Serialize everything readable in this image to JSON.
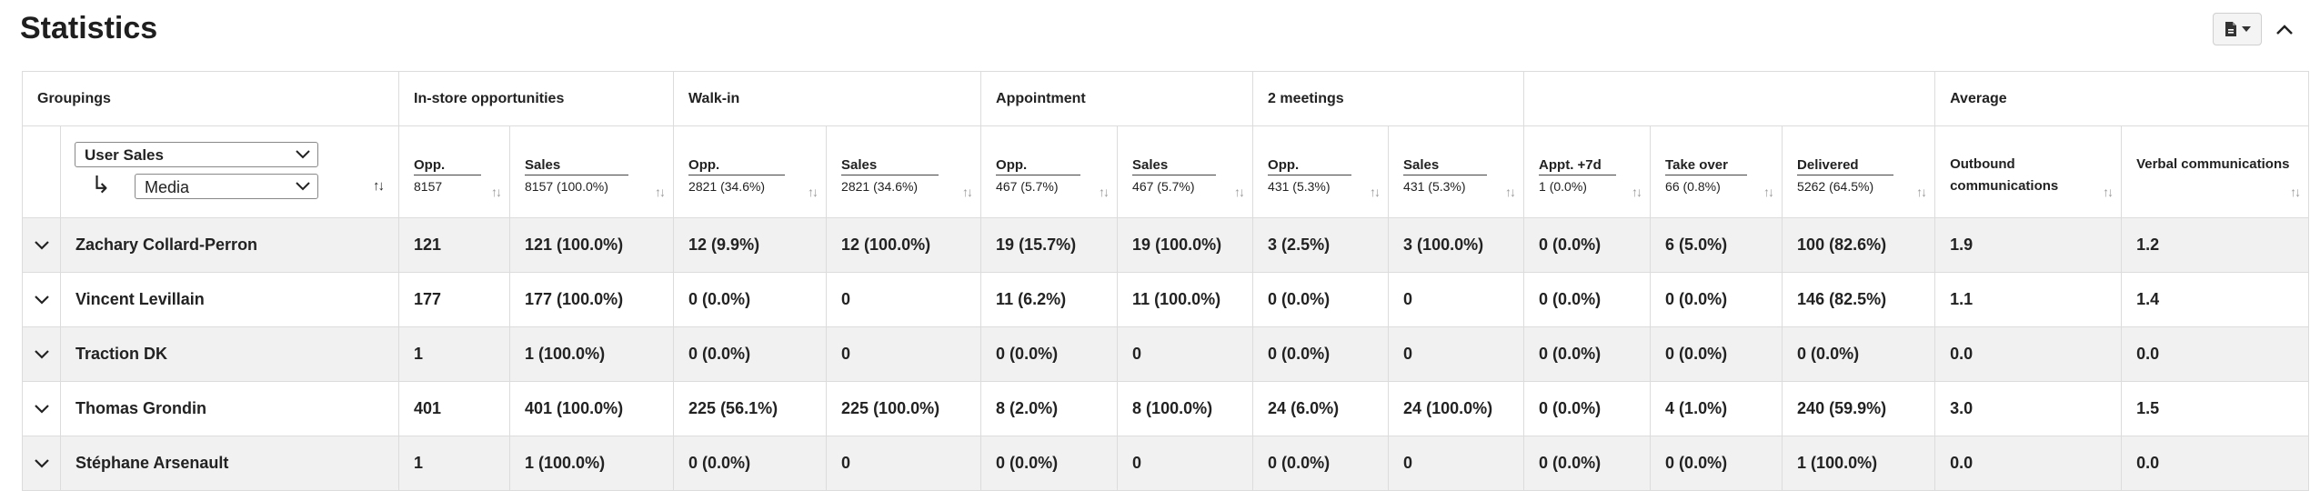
{
  "title": "Statistics",
  "icons": {
    "export": "file-export-icon",
    "collapse": "chevron-up-icon",
    "expand": "chevron-down-icon"
  },
  "groups": [
    "Groupings",
    "In-store opportunities",
    "Walk-in",
    "Appointment",
    "2 meetings",
    "",
    "Average"
  ],
  "groupings": {
    "primary": "User Sales",
    "secondary": "Media"
  },
  "columns": [
    {
      "label": "Opp.",
      "total": "8157"
    },
    {
      "label": "Sales",
      "total": "8157 (100.0%)"
    },
    {
      "label": "Opp.",
      "total": "2821 (34.6%)"
    },
    {
      "label": "Sales",
      "total": "2821 (34.6%)"
    },
    {
      "label": "Opp.",
      "total": "467 (5.7%)"
    },
    {
      "label": "Sales",
      "total": "467 (5.7%)"
    },
    {
      "label": "Opp.",
      "total": "431 (5.3%)"
    },
    {
      "label": "Sales",
      "total": "431 (5.3%)"
    },
    {
      "label": "Appt. +7d",
      "total": "1 (0.0%)"
    },
    {
      "label": "Take over",
      "total": "66 (0.8%)"
    },
    {
      "label": "Delivered",
      "total": "5262 (64.5%)"
    },
    {
      "label": "Outbound communications",
      "total": ""
    },
    {
      "label": "Verbal communications",
      "total": ""
    }
  ],
  "rows": [
    {
      "name": "Zachary Collard-Perron",
      "cells": [
        "121",
        "121 (100.0%)",
        "12 (9.9%)",
        "12 (100.0%)",
        "19 (15.7%)",
        "19 (100.0%)",
        "3 (2.5%)",
        "3 (100.0%)",
        "0 (0.0%)",
        "6 (5.0%)",
        "100 (82.6%)",
        "1.9",
        "1.2"
      ]
    },
    {
      "name": "Vincent Levillain",
      "cells": [
        "177",
        "177 (100.0%)",
        "0 (0.0%)",
        "0",
        "11 (6.2%)",
        "11 (100.0%)",
        "0 (0.0%)",
        "0",
        "0 (0.0%)",
        "0 (0.0%)",
        "146 (82.5%)",
        "1.1",
        "1.4"
      ]
    },
    {
      "name": "Traction DK",
      "cells": [
        "1",
        "1 (100.0%)",
        "0 (0.0%)",
        "0",
        "0 (0.0%)",
        "0",
        "0 (0.0%)",
        "0",
        "0 (0.0%)",
        "0 (0.0%)",
        "0 (0.0%)",
        "0.0",
        "0.0"
      ]
    },
    {
      "name": "Thomas Grondin",
      "cells": [
        "401",
        "401 (100.0%)",
        "225 (56.1%)",
        "225 (100.0%)",
        "8 (2.0%)",
        "8 (100.0%)",
        "24 (6.0%)",
        "24 (100.0%)",
        "0 (0.0%)",
        "4 (1.0%)",
        "240 (59.9%)",
        "3.0",
        "1.5"
      ]
    },
    {
      "name": "Stéphane Arsenault",
      "cells": [
        "1",
        "1 (100.0%)",
        "0 (0.0%)",
        "0",
        "0 (0.0%)",
        "0",
        "0 (0.0%)",
        "0",
        "0 (0.0%)",
        "0 (0.0%)",
        "1 (100.0%)",
        "0.0",
        "0.0"
      ]
    }
  ]
}
